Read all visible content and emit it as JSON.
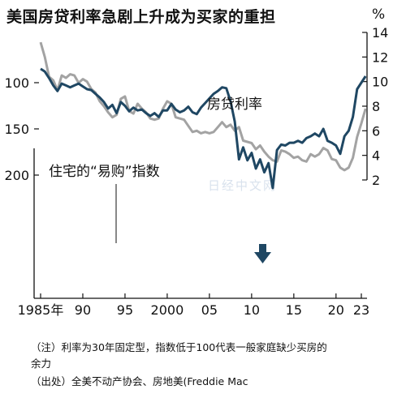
{
  "title": "美国房贷利率急剧上升成为买家的重担",
  "unit_label": "%",
  "watermark": "日经中文网",
  "notes": {
    "note_line1": "（注）利率为30年固定型，指数低于100代表一般家庭缺少买房的",
    "note_line2": "余力",
    "source": "（出处）全美不动产协会、房地美(Freddie Mac"
  },
  "colors": {
    "mortgage_rate": "#a3a3a3",
    "affordability": "#1f4763",
    "arrow": "#1f4763",
    "axis": "#111111"
  },
  "chart_data": {
    "type": "line",
    "title": "美国房贷利率急剧上升成为买家的重担",
    "x_axis": {
      "ticks": [
        1985,
        1990,
        1995,
        2000,
        2005,
        2010,
        2015,
        2020,
        2023
      ],
      "tick_labels": [
        "1985年",
        "90",
        "95",
        "2000",
        "05",
        "10",
        "15",
        "20",
        "23"
      ],
      "range": [
        1984.5,
        2023.9
      ]
    },
    "left_axis": {
      "ticks": [
        100,
        150,
        200
      ],
      "range": [
        84,
        222
      ]
    },
    "right_axis": {
      "ticks": [
        2,
        4,
        6,
        8,
        10,
        12,
        14
      ],
      "unit": "%",
      "range": [
        1.6,
        14.4
      ]
    },
    "series": [
      {
        "name": "房贷利率",
        "axis": "right",
        "x": [
          1985.0,
          1985.5,
          1986.0,
          1986.5,
          1987.0,
          1987.5,
          1988.0,
          1988.5,
          1989.0,
          1989.5,
          1990.0,
          1990.5,
          1991.0,
          1991.5,
          1992.0,
          1992.5,
          1993.0,
          1993.5,
          1994.0,
          1994.5,
          1995.0,
          1995.5,
          1996.0,
          1996.5,
          1997.0,
          1997.5,
          1998.0,
          1998.5,
          1999.0,
          1999.5,
          2000.0,
          2000.5,
          2001.0,
          2001.5,
          2002.0,
          2002.5,
          2003.0,
          2003.5,
          2004.0,
          2004.5,
          2005.0,
          2005.5,
          2006.0,
          2006.5,
          2007.0,
          2007.5,
          2008.0,
          2008.5,
          2009.0,
          2009.5,
          2010.0,
          2010.5,
          2011.0,
          2011.5,
          2012.0,
          2012.5,
          2013.0,
          2013.5,
          2014.0,
          2014.5,
          2015.0,
          2015.5,
          2016.0,
          2016.5,
          2017.0,
          2017.5,
          2018.0,
          2018.5,
          2019.0,
          2019.5,
          2020.0,
          2020.5,
          2021.0,
          2021.5,
          2022.0,
          2022.5,
          2023.0,
          2023.5
        ],
        "y": [
          13.2,
          12.0,
          10.4,
          10.1,
          9.3,
          10.5,
          10.3,
          10.6,
          10.5,
          9.9,
          10.2,
          10.0,
          9.4,
          9.1,
          8.4,
          8.0,
          7.5,
          7.1,
          7.3,
          8.6,
          8.8,
          7.6,
          7.4,
          8.2,
          7.8,
          7.5,
          7.0,
          6.9,
          7.0,
          7.8,
          8.4,
          8.2,
          7.1,
          7.0,
          6.9,
          6.4,
          5.9,
          6.0,
          5.8,
          5.9,
          5.8,
          5.9,
          6.3,
          6.7,
          6.3,
          6.5,
          6.0,
          6.3,
          5.2,
          5.1,
          5.0,
          4.5,
          4.8,
          4.3,
          3.9,
          3.6,
          3.5,
          4.4,
          4.3,
          4.1,
          3.8,
          3.9,
          3.6,
          3.5,
          4.1,
          3.9,
          4.1,
          4.6,
          4.4,
          3.7,
          3.6,
          3.0,
          2.8,
          3.0,
          3.8,
          5.5,
          6.6,
          7.8
        ]
      },
      {
        "name": "住宅的“易购”指数",
        "axis": "left",
        "x": [
          1985.0,
          1985.5,
          1986.0,
          1986.5,
          1987.0,
          1987.5,
          1988.0,
          1988.5,
          1989.0,
          1989.5,
          1990.0,
          1990.5,
          1991.0,
          1991.5,
          1992.0,
          1992.5,
          1993.0,
          1993.5,
          1994.0,
          1994.5,
          1995.0,
          1995.5,
          1996.0,
          1996.5,
          1997.0,
          1997.5,
          1998.0,
          1998.5,
          1999.0,
          1999.5,
          2000.0,
          2000.5,
          2001.0,
          2001.5,
          2002.0,
          2002.5,
          2003.0,
          2003.5,
          2004.0,
          2004.5,
          2005.0,
          2005.5,
          2006.0,
          2006.5,
          2007.0,
          2007.5,
          2008.0,
          2008.5,
          2009.0,
          2009.5,
          2010.0,
          2010.5,
          2011.0,
          2011.5,
          2012.0,
          2012.5,
          2013.0,
          2013.5,
          2014.0,
          2014.5,
          2015.0,
          2015.5,
          2016.0,
          2016.5,
          2017.0,
          2017.5,
          2018.0,
          2018.5,
          2019.0,
          2019.5,
          2020.0,
          2020.5,
          2021.0,
          2021.5,
          2022.0,
          2022.5,
          2023.0,
          2023.5
        ],
        "y": [
          85,
          88,
          95,
          103,
          109,
          101,
          103,
          105,
          103,
          101,
          104,
          107,
          108,
          112,
          116,
          121,
          128,
          124,
          133,
          121,
          125,
          131,
          127,
          130,
          129,
          133,
          136,
          133,
          137,
          130,
          130,
          123,
          129,
          132,
          130,
          126,
          132,
          134,
          127,
          122,
          117,
          112,
          109,
          105,
          106,
          120,
          142,
          183,
          170,
          184,
          176,
          193,
          183,
          197,
          187,
          214,
          173,
          167,
          168,
          165,
          165,
          163,
          165,
          160,
          158,
          155,
          158,
          150,
          163,
          165,
          168,
          177,
          158,
          152,
          137,
          107,
          100,
          93
        ]
      }
    ],
    "annotations": [
      "房贷利率",
      "住宅的“易购”指数"
    ]
  }
}
